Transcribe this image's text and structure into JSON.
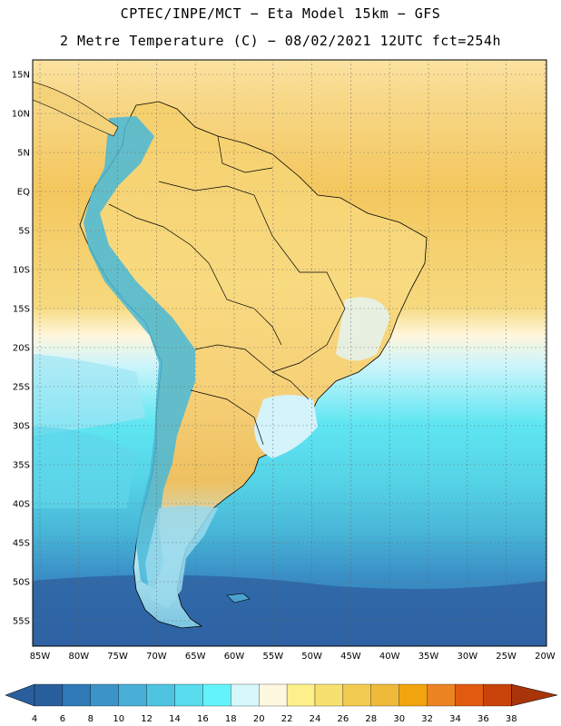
{
  "header": {
    "line1": "CPTEC/INPE/MCT −  Eta Model 15km − GFS",
    "line2": "2 Metre Temperature (C) − 08/02/2021 12UTC fct=254h"
  },
  "map": {
    "lat_labels": [
      "15N",
      "10N",
      "5N",
      "EQ",
      "5S",
      "10S",
      "15S",
      "20S",
      "25S",
      "30S",
      "35S",
      "40S",
      "45S",
      "50S",
      "55S"
    ],
    "lon_labels": [
      "85W",
      "80W",
      "75W",
      "70W",
      "65W",
      "60W",
      "55W",
      "50W",
      "45W",
      "40W",
      "35W",
      "30W",
      "25W",
      "20W"
    ],
    "gridlines": true,
    "gridline_style": "dotted",
    "colors": {
      "ocean_warm": "#f5c95a",
      "ocean_cool": "#5fe9f0",
      "ocean_cold": "#2e6fb0",
      "land_warm": "#f6d37a",
      "land_cool": "#d8f4fa",
      "andes": "#45b8d6"
    }
  },
  "colorbar": {
    "labels": [
      "4",
      "6",
      "8",
      "10",
      "12",
      "14",
      "16",
      "18",
      "20",
      "22",
      "24",
      "26",
      "28",
      "30",
      "32",
      "34",
      "36",
      "38"
    ],
    "colors": [
      "#2a5f9e",
      "#2f7ab7",
      "#3b93c8",
      "#49aed6",
      "#4ec4e0",
      "#58dcee",
      "#62f4fa",
      "#d6f7fb",
      "#fff8e0",
      "#fdf08a",
      "#f8e070",
      "#f2cc50",
      "#efb93a",
      "#f2a40e",
      "#ec8424",
      "#e05a10",
      "#c8430a",
      "#a8340a"
    ]
  }
}
